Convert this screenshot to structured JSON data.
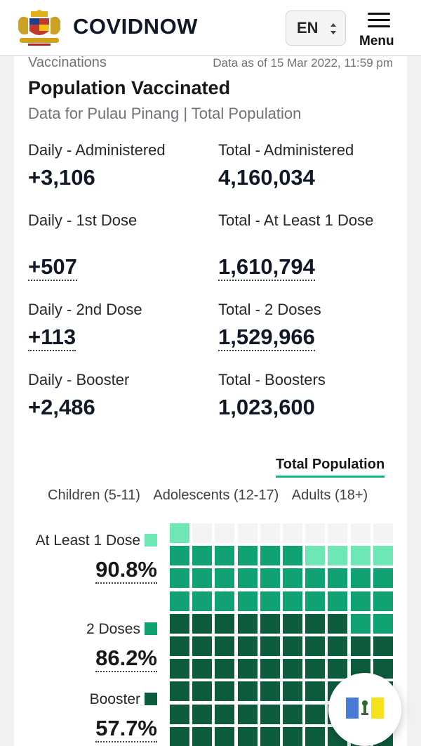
{
  "header": {
    "brand": "COVIDNOW",
    "lang_value": "EN",
    "menu_label": "Menu"
  },
  "card": {
    "section_label": "Vaccinations",
    "data_as_of": "Data as of 15 Mar 2022, 11:59 pm",
    "title": "Population Vaccinated",
    "subtitle": "Data for Pulau Pinang | Total Population"
  },
  "stats": [
    {
      "label": "Daily - Administered",
      "value": "+3,106"
    },
    {
      "label": "Total - Administered",
      "value": "4,160,034"
    },
    {
      "label": "Daily - 1st Dose",
      "value": "+507"
    },
    {
      "label": "Total - At Least 1 Dose",
      "value": "1,610,794"
    },
    {
      "label": "Daily - 2nd Dose",
      "value": "+113"
    },
    {
      "label": "Total - 2 Doses",
      "value": "1,529,966"
    },
    {
      "label": "Daily - Booster",
      "value": "+2,486"
    },
    {
      "label": "Total - Boosters",
      "value": "1,023,600"
    }
  ],
  "filters": {
    "population_toggle": "Total Population",
    "age_groups": [
      "Children (5-11)",
      "Adolescents (12-17)",
      "Adults (18+)"
    ]
  },
  "chart_data": {
    "type": "waffle",
    "series": [
      {
        "name": "At Least 1 Dose",
        "percent": "90.8%",
        "value": 90.8,
        "color": "#6ee7b7"
      },
      {
        "name": "2 Doses",
        "percent": "86.2%",
        "value": 86.2,
        "color": "#10a272"
      },
      {
        "name": "Booster",
        "percent": "57.7%",
        "value": 57.7,
        "color": "#0d5c3e"
      }
    ],
    "grid": {
      "columns": 10,
      "rows": 10
    },
    "empty_color": "#f4f4f5"
  },
  "colors": {
    "accent": "#10b981"
  }
}
